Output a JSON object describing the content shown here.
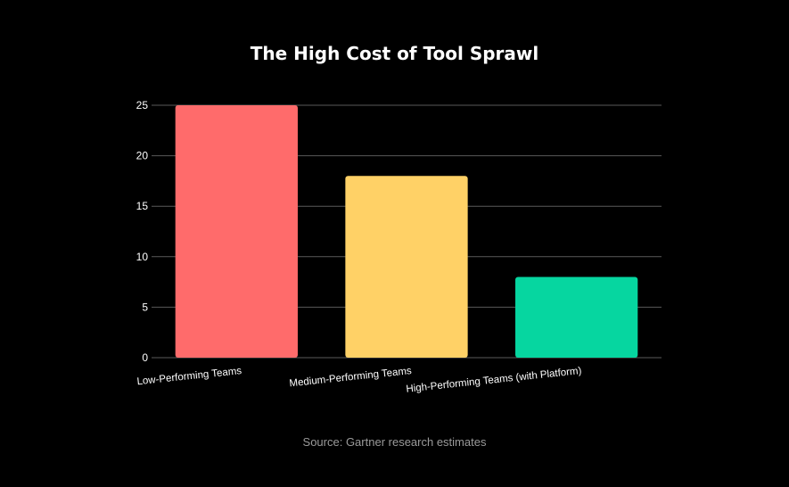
{
  "chart_data": {
    "type": "bar",
    "title": "The High Cost of Tool Sprawl",
    "categories": [
      "Low-Performing Teams",
      "Medium-Performing Teams",
      "High-Performing Teams (with Platform)"
    ],
    "values": [
      25,
      18,
      8
    ],
    "xlabel": "",
    "ylabel": "",
    "ylim": [
      0,
      25
    ],
    "yticks": [
      0,
      5,
      10,
      15,
      20,
      25
    ],
    "grid": true,
    "legend": "none",
    "colors": [
      "#ff6b6b",
      "#ffd166",
      "#06d6a0"
    ],
    "source": "Source: Gartner research estimates"
  }
}
